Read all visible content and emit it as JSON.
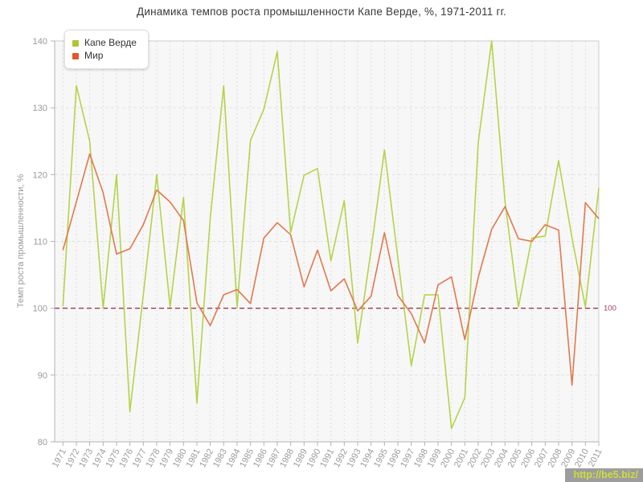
{
  "title": "Динамика темпов роста промышленности Капе Верде, %, 1971-2011 гг.",
  "y_axis": {
    "label": "Темп роста промышленности, %"
  },
  "guide": {
    "value": 100,
    "label": "100",
    "color": "#9e3b4e"
  },
  "watermark": {
    "text": "http://be5.biz/"
  },
  "legend": {
    "items": [
      {
        "label": "Капе Верде",
        "color": "#abc832"
      },
      {
        "label": "Мир",
        "color": "#e0582b"
      }
    ]
  },
  "colors": {
    "plot_background": "#f7f7f7",
    "plot_border": "#cccccc",
    "grid_horizontal": "#e2e2e2",
    "grid_vertical": "#dedede",
    "axis_line": "#b3b3b3",
    "tick": "#b3b3b3",
    "tick_text": "#9a9a9a",
    "title_text": "#3a3a3a"
  },
  "chart_data": {
    "type": "line",
    "title": "Динамика темпов роста промышленности Капе Верде, %, 1971-2011 гг.",
    "xlabel": "",
    "ylabel": "Темп роста промышленности, %",
    "ylim": [
      80,
      140
    ],
    "yticks": [
      80,
      90,
      100,
      110,
      120,
      130,
      140
    ],
    "grid": true,
    "legend_position": "top-left",
    "guide_line": 100,
    "x": [
      1971,
      1972,
      1973,
      1974,
      1975,
      1976,
      1977,
      1978,
      1979,
      1980,
      1981,
      1982,
      1983,
      1984,
      1985,
      1986,
      1987,
      1988,
      1989,
      1990,
      1991,
      1992,
      1993,
      1994,
      1995,
      1996,
      1997,
      1998,
      1999,
      2000,
      2001,
      2002,
      2003,
      2004,
      2005,
      2006,
      2007,
      2008,
      2009,
      2010,
      2011
    ],
    "series": [
      {
        "name": "Капе Верде",
        "color": "#b5d348",
        "values": [
          100.3,
          133.3,
          125,
          100,
          120,
          84.5,
          102,
          120,
          100.2,
          116.6,
          85.8,
          113.5,
          133.3,
          100.1,
          125.1,
          129.8,
          138.4,
          111.3,
          119.9,
          120.9,
          107.1,
          116.1,
          94.8,
          108.7,
          123.7,
          107.5,
          91.4,
          102,
          102,
          82,
          86.6,
          124.8,
          140,
          116,
          100.2,
          110.5,
          110.8,
          122.1,
          110.5,
          100.2,
          118
        ]
      },
      {
        "name": "Мир",
        "color": "#e1794d",
        "values": [
          108.7,
          115.9,
          123.1,
          117.3,
          108.1,
          108.9,
          112.5,
          117.7,
          115.9,
          113.1,
          100.8,
          97.4,
          102,
          102.8,
          100.7,
          110.5,
          112.8,
          111,
          103.2,
          108.7,
          102.6,
          104.4,
          99.6,
          101.8,
          111.3,
          101.9,
          99.2,
          94.8,
          103.5,
          104.7,
          95.3,
          104.6,
          111.8,
          115.2,
          110.4,
          110,
          112.5,
          111.7,
          88.5,
          115.8,
          113.4
        ]
      }
    ]
  }
}
